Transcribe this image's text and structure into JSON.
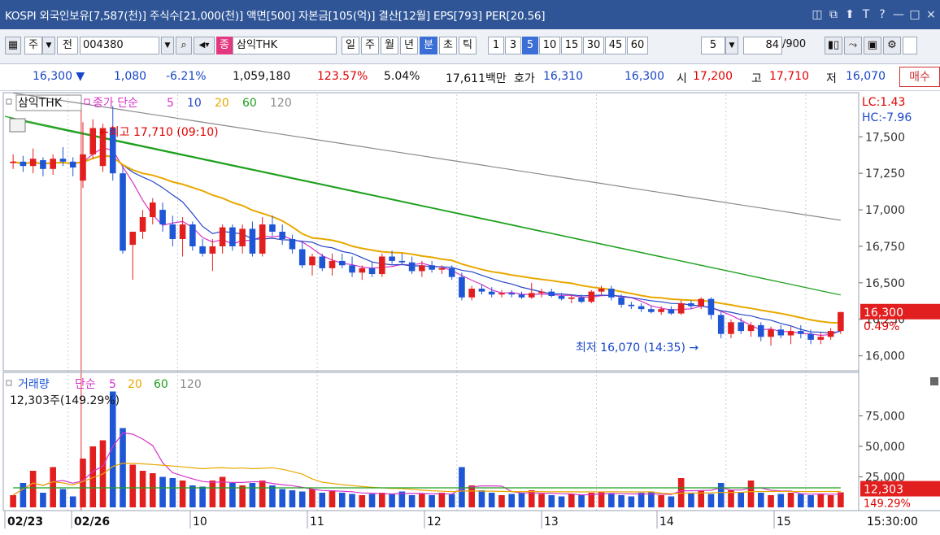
{
  "titlebar": {
    "title": "KOSPI 외국인보유[7,587(천)] 주식수[21,000(천)] 액면[500] 자본금[105(억)] 결산[12월] EPS[793] PER[20.56]",
    "icons": [
      "window-icon",
      "popup-icon",
      "pin-icon",
      "font-icon",
      "help-icon",
      "minimize-icon",
      "maximize-icon",
      "close-icon"
    ],
    "icon_glyphs": [
      "◫",
      "⧉",
      "⬆",
      "T",
      "?",
      "—",
      "□",
      "×"
    ]
  },
  "toolbar": {
    "period_label": "주",
    "prev_label": "전",
    "code": "004380",
    "stock_badge": "종",
    "stock_name": "삼익THK",
    "periods": [
      "일",
      "주",
      "월",
      "년",
      "분",
      "초",
      "틱"
    ],
    "selected_period": "분",
    "intervals": [
      "1",
      "3",
      "5",
      "10",
      "15",
      "30",
      "45",
      "60"
    ],
    "selected_interval": "5",
    "interval_value": "5",
    "count_value": "84",
    "count_max": "/900"
  },
  "quote": {
    "price": "16,300 ▼",
    "change": "1,080",
    "change_pct": "-6.21%",
    "volume": "1,059,180",
    "volume_pct": "123.57%",
    "turnover": "5.04%",
    "amount": "17,611백만",
    "ask_label": "호가",
    "ask": "16,310",
    "bid": "16,300",
    "open_label": "시",
    "open": "17,200",
    "high_label": "고",
    "high": "17,710",
    "low_label": "저",
    "low": "16,070",
    "buy_button": "매수"
  },
  "price_panel": {
    "name": "삼익THK",
    "legend_prefix": "종가 단순",
    "ma_periods": [
      "5",
      "10",
      "20",
      "60",
      "120"
    ],
    "ma_colors": [
      "#d633c9",
      "#2445c8",
      "#e8a800",
      "#1ea01e",
      "#8a8a8a"
    ],
    "lc": "LC:1.43",
    "hc": "HC:-7.96",
    "high_note": "←최고 17,710 (09:10)",
    "low_note": "최저 16,070 (14:35) →",
    "current_price": "16,300",
    "current_pct": "0.49%"
  },
  "volume_panel": {
    "name": "거래량",
    "legend_prefix": "단순",
    "ma_periods": [
      "5",
      "20",
      "60",
      "120"
    ],
    "current_volume_label": "12,303주(149.29%)",
    "current_volume": "12,303",
    "current_pct": "149.29%"
  },
  "x_axis": {
    "labels": [
      "02/23",
      "02/26",
      "10",
      "11",
      "12",
      "13",
      "14",
      "15"
    ],
    "time": "15:30:00"
  },
  "chart_data": {
    "type": "candlestick",
    "price_ticks": [
      16000,
      16250,
      16500,
      16750,
      17000,
      17250,
      17500
    ],
    "volume_ticks": [
      25000,
      50000,
      75000
    ],
    "candles": [
      {
        "o": 17320,
        "h": 17380,
        "l": 17280,
        "c": 17330
      },
      {
        "o": 17330,
        "h": 17370,
        "l": 17260,
        "c": 17300
      },
      {
        "o": 17300,
        "h": 17420,
        "l": 17250,
        "c": 17350
      },
      {
        "o": 17340,
        "h": 17360,
        "l": 17230,
        "c": 17280
      },
      {
        "o": 17280,
        "h": 17380,
        "l": 17240,
        "c": 17350
      },
      {
        "o": 17350,
        "h": 17430,
        "l": 17300,
        "c": 17330
      },
      {
        "o": 17330,
        "h": 17360,
        "l": 17230,
        "c": 17290
      },
      {
        "o": 17200,
        "h": 17600,
        "l": 17150,
        "c": 17380
      },
      {
        "o": 17380,
        "h": 17620,
        "l": 17350,
        "c": 17560
      },
      {
        "o": 17300,
        "h": 17590,
        "l": 17260,
        "c": 17560
      },
      {
        "o": 17560,
        "h": 17710,
        "l": 17200,
        "c": 17250
      },
      {
        "o": 17250,
        "h": 17300,
        "l": 16700,
        "c": 16720
      },
      {
        "o": 16760,
        "h": 16850,
        "l": 16520,
        "c": 16850
      },
      {
        "o": 16850,
        "h": 17000,
        "l": 16800,
        "c": 16950
      },
      {
        "o": 16950,
        "h": 17080,
        "l": 16900,
        "c": 17050
      },
      {
        "o": 17000,
        "h": 17050,
        "l": 16850,
        "c": 16900
      },
      {
        "o": 16900,
        "h": 16960,
        "l": 16750,
        "c": 16800
      },
      {
        "o": 16800,
        "h": 16950,
        "l": 16680,
        "c": 16900
      },
      {
        "o": 16900,
        "h": 16920,
        "l": 16720,
        "c": 16750
      },
      {
        "o": 16750,
        "h": 16800,
        "l": 16680,
        "c": 16700
      },
      {
        "o": 16700,
        "h": 16800,
        "l": 16580,
        "c": 16750
      },
      {
        "o": 16750,
        "h": 16900,
        "l": 16700,
        "c": 16880
      },
      {
        "o": 16880,
        "h": 16900,
        "l": 16720,
        "c": 16750
      },
      {
        "o": 16750,
        "h": 16900,
        "l": 16700,
        "c": 16870
      },
      {
        "o": 16870,
        "h": 16920,
        "l": 16680,
        "c": 16700
      },
      {
        "o": 16700,
        "h": 16950,
        "l": 16680,
        "c": 16900
      },
      {
        "o": 16900,
        "h": 16960,
        "l": 16820,
        "c": 16850
      },
      {
        "o": 16850,
        "h": 16900,
        "l": 16760,
        "c": 16800
      },
      {
        "o": 16800,
        "h": 16830,
        "l": 16700,
        "c": 16730
      },
      {
        "o": 16730,
        "h": 16780,
        "l": 16600,
        "c": 16620
      },
      {
        "o": 16620,
        "h": 16700,
        "l": 16550,
        "c": 16680
      },
      {
        "o": 16680,
        "h": 16700,
        "l": 16580,
        "c": 16600
      },
      {
        "o": 16600,
        "h": 16700,
        "l": 16550,
        "c": 16650
      },
      {
        "o": 16650,
        "h": 16700,
        "l": 16600,
        "c": 16620
      },
      {
        "o": 16620,
        "h": 16680,
        "l": 16540,
        "c": 16570
      },
      {
        "o": 16570,
        "h": 16620,
        "l": 16520,
        "c": 16600
      },
      {
        "o": 16600,
        "h": 16640,
        "l": 16540,
        "c": 16560
      },
      {
        "o": 16560,
        "h": 16700,
        "l": 16540,
        "c": 16680
      },
      {
        "o": 16680,
        "h": 16720,
        "l": 16630,
        "c": 16650
      },
      {
        "o": 16650,
        "h": 16700,
        "l": 16620,
        "c": 16640
      },
      {
        "o": 16640,
        "h": 16680,
        "l": 16560,
        "c": 16580
      },
      {
        "o": 16580,
        "h": 16650,
        "l": 16540,
        "c": 16620
      },
      {
        "o": 16620,
        "h": 16650,
        "l": 16570,
        "c": 16590
      },
      {
        "o": 16590,
        "h": 16620,
        "l": 16560,
        "c": 16600
      },
      {
        "o": 16600,
        "h": 16620,
        "l": 16520,
        "c": 16540
      },
      {
        "o": 16540,
        "h": 16570,
        "l": 16380,
        "c": 16400
      },
      {
        "o": 16400,
        "h": 16480,
        "l": 16380,
        "c": 16460
      },
      {
        "o": 16460,
        "h": 16490,
        "l": 16420,
        "c": 16440
      },
      {
        "o": 16440,
        "h": 16470,
        "l": 16400,
        "c": 16420
      },
      {
        "o": 16420,
        "h": 16450,
        "l": 16400,
        "c": 16430
      },
      {
        "o": 16430,
        "h": 16450,
        "l": 16400,
        "c": 16420
      },
      {
        "o": 16420,
        "h": 16440,
        "l": 16390,
        "c": 16400
      },
      {
        "o": 16400,
        "h": 16500,
        "l": 16390,
        "c": 16430
      },
      {
        "o": 16430,
        "h": 16460,
        "l": 16400,
        "c": 16440
      },
      {
        "o": 16440,
        "h": 16460,
        "l": 16400,
        "c": 16410
      },
      {
        "o": 16410,
        "h": 16430,
        "l": 16380,
        "c": 16390
      },
      {
        "o": 16390,
        "h": 16420,
        "l": 16360,
        "c": 16400
      },
      {
        "o": 16400,
        "h": 16420,
        "l": 16360,
        "c": 16370
      },
      {
        "o": 16370,
        "h": 16450,
        "l": 16360,
        "c": 16440
      },
      {
        "o": 16440,
        "h": 16480,
        "l": 16420,
        "c": 16460
      },
      {
        "o": 16460,
        "h": 16480,
        "l": 16380,
        "c": 16400
      },
      {
        "o": 16400,
        "h": 16420,
        "l": 16330,
        "c": 16350
      },
      {
        "o": 16350,
        "h": 16370,
        "l": 16320,
        "c": 16340
      },
      {
        "o": 16340,
        "h": 16360,
        "l": 16300,
        "c": 16320
      },
      {
        "o": 16320,
        "h": 16340,
        "l": 16290,
        "c": 16300
      },
      {
        "o": 16300,
        "h": 16340,
        "l": 16280,
        "c": 16320
      },
      {
        "o": 16320,
        "h": 16340,
        "l": 16280,
        "c": 16290
      },
      {
        "o": 16290,
        "h": 16380,
        "l": 16280,
        "c": 16360
      },
      {
        "o": 16360,
        "h": 16380,
        "l": 16320,
        "c": 16340
      },
      {
        "o": 16340,
        "h": 16400,
        "l": 16320,
        "c": 16390
      },
      {
        "o": 16390,
        "h": 16400,
        "l": 16250,
        "c": 16280
      },
      {
        "o": 16280,
        "h": 16300,
        "l": 16120,
        "c": 16150
      },
      {
        "o": 16150,
        "h": 16250,
        "l": 16120,
        "c": 16230
      },
      {
        "o": 16230,
        "h": 16260,
        "l": 16150,
        "c": 16170
      },
      {
        "o": 16170,
        "h": 16230,
        "l": 16130,
        "c": 16210
      },
      {
        "o": 16210,
        "h": 16230,
        "l": 16100,
        "c": 16130
      },
      {
        "o": 16130,
        "h": 16200,
        "l": 16070,
        "c": 16180
      },
      {
        "o": 16180,
        "h": 16210,
        "l": 16120,
        "c": 16140
      },
      {
        "o": 16140,
        "h": 16200,
        "l": 16080,
        "c": 16170
      },
      {
        "o": 16170,
        "h": 16210,
        "l": 16120,
        "c": 16150
      },
      {
        "o": 16150,
        "h": 16180,
        "l": 16080,
        "c": 16110
      },
      {
        "o": 16110,
        "h": 16160,
        "l": 16080,
        "c": 16130
      },
      {
        "o": 16130,
        "h": 16190,
        "l": 16110,
        "c": 16170
      },
      {
        "o": 16170,
        "h": 16300,
        "l": 16150,
        "c": 16300
      }
    ],
    "volume": [
      10000,
      20000,
      30000,
      12000,
      33000,
      15000,
      9000,
      40000,
      50000,
      55000,
      95000,
      65000,
      35000,
      30000,
      28000,
      25000,
      24000,
      22000,
      18000,
      17000,
      22000,
      25000,
      20000,
      18000,
      20000,
      22000,
      18000,
      15000,
      14000,
      13000,
      15000,
      12000,
      14000,
      12000,
      11000,
      10000,
      11000,
      12000,
      11000,
      13000,
      10000,
      11000,
      10000,
      12000,
      11000,
      33000,
      18000,
      14000,
      12000,
      10000,
      11000,
      12000,
      14000,
      11000,
      10000,
      9000,
      11000,
      10000,
      12000,
      13000,
      11000,
      10000,
      9000,
      12000,
      13000,
      10000,
      9000,
      24000,
      12000,
      14000,
      11000,
      20000,
      14000,
      12000,
      22000,
      12000,
      10000,
      11000,
      12000,
      11000,
      10000,
      11000,
      10000,
      12303
    ]
  }
}
